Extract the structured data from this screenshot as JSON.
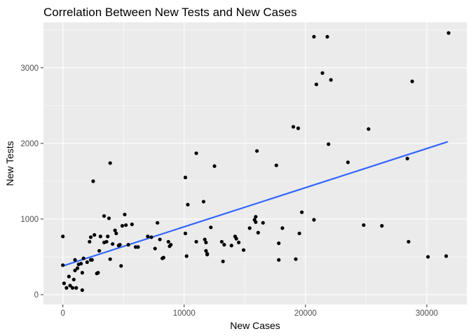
{
  "chart_data": {
    "type": "scatter",
    "title": "Correlation Between New Tests and New Cases",
    "xlabel": "New Cases",
    "ylabel": "New Tests",
    "xlim": [
      -1600,
      33300
    ],
    "ylim": [
      -130,
      3600
    ],
    "x_ticks": [
      0,
      10000,
      20000,
      30000
    ],
    "x_tick_labels": [
      "0",
      "10000",
      "20000",
      "30000"
    ],
    "y_ticks": [
      0,
      1000,
      2000,
      3000
    ],
    "y_tick_labels": [
      "0",
      "1000",
      "2000",
      "3000"
    ],
    "grid": true,
    "trend_line": {
      "x": [
        0,
        31700
      ],
      "y": [
        380,
        2020
      ],
      "color": "#3366ff"
    },
    "point_color": "#000000",
    "panel_background": "#ebebeb",
    "points": [
      [
        0,
        390
      ],
      [
        0,
        770
      ],
      [
        100,
        150
      ],
      [
        300,
        90
      ],
      [
        500,
        240
      ],
      [
        600,
        120
      ],
      [
        800,
        90
      ],
      [
        900,
        200
      ],
      [
        1000,
        460
      ],
      [
        1000,
        320
      ],
      [
        1100,
        90
      ],
      [
        1200,
        350
      ],
      [
        1300,
        400
      ],
      [
        1500,
        410
      ],
      [
        1600,
        60
      ],
      [
        1600,
        290
      ],
      [
        1700,
        480
      ],
      [
        2000,
        430
      ],
      [
        2200,
        700
      ],
      [
        2300,
        460
      ],
      [
        2300,
        760
      ],
      [
        2400,
        460
      ],
      [
        2500,
        1500
      ],
      [
        2600,
        790
      ],
      [
        2800,
        280
      ],
      [
        2900,
        290
      ],
      [
        3000,
        580
      ],
      [
        3100,
        770
      ],
      [
        3400,
        1040
      ],
      [
        3400,
        690
      ],
      [
        3600,
        700
      ],
      [
        3700,
        770
      ],
      [
        3800,
        1010
      ],
      [
        3900,
        1740
      ],
      [
        3900,
        470
      ],
      [
        4100,
        670
      ],
      [
        4300,
        850
      ],
      [
        4400,
        810
      ],
      [
        4600,
        650
      ],
      [
        4700,
        660
      ],
      [
        4800,
        380
      ],
      [
        4900,
        910
      ],
      [
        5100,
        1060
      ],
      [
        5200,
        920
      ],
      [
        5400,
        660
      ],
      [
        5700,
        930
      ],
      [
        6000,
        630
      ],
      [
        6200,
        630
      ],
      [
        7000,
        770
      ],
      [
        7300,
        760
      ],
      [
        7600,
        610
      ],
      [
        7800,
        950
      ],
      [
        8000,
        730
      ],
      [
        8200,
        480
      ],
      [
        8300,
        490
      ],
      [
        8700,
        700
      ],
      [
        8800,
        640
      ],
      [
        8900,
        660
      ],
      [
        10100,
        1550
      ],
      [
        10100,
        810
      ],
      [
        10200,
        510
      ],
      [
        10300,
        1190
      ],
      [
        11000,
        1870
      ],
      [
        11000,
        700
      ],
      [
        11600,
        1230
      ],
      [
        11700,
        730
      ],
      [
        11800,
        690
      ],
      [
        11800,
        580
      ],
      [
        11900,
        540
      ],
      [
        11900,
        530
      ],
      [
        12200,
        890
      ],
      [
        12500,
        1700
      ],
      [
        13100,
        700
      ],
      [
        13200,
        440
      ],
      [
        13300,
        660
      ],
      [
        13900,
        650
      ],
      [
        14200,
        770
      ],
      [
        14300,
        740
      ],
      [
        14500,
        690
      ],
      [
        14900,
        590
      ],
      [
        15400,
        880
      ],
      [
        15800,
        990
      ],
      [
        15900,
        1030
      ],
      [
        15900,
        960
      ],
      [
        16000,
        1900
      ],
      [
        16100,
        820
      ],
      [
        16500,
        950
      ],
      [
        17600,
        1710
      ],
      [
        17800,
        680
      ],
      [
        17800,
        460
      ],
      [
        18100,
        880
      ],
      [
        19000,
        2220
      ],
      [
        19200,
        470
      ],
      [
        19400,
        2200
      ],
      [
        19500,
        810
      ],
      [
        19700,
        1090
      ],
      [
        20700,
        3410
      ],
      [
        20700,
        990
      ],
      [
        20900,
        2780
      ],
      [
        21400,
        2930
      ],
      [
        21800,
        3410
      ],
      [
        21900,
        1990
      ],
      [
        22100,
        2840
      ],
      [
        23500,
        1750
      ],
      [
        24800,
        920
      ],
      [
        25200,
        2190
      ],
      [
        26300,
        910
      ],
      [
        28400,
        1800
      ],
      [
        28500,
        700
      ],
      [
        28800,
        2820
      ],
      [
        30100,
        500
      ],
      [
        31600,
        510
      ],
      [
        31800,
        3460
      ]
    ]
  }
}
